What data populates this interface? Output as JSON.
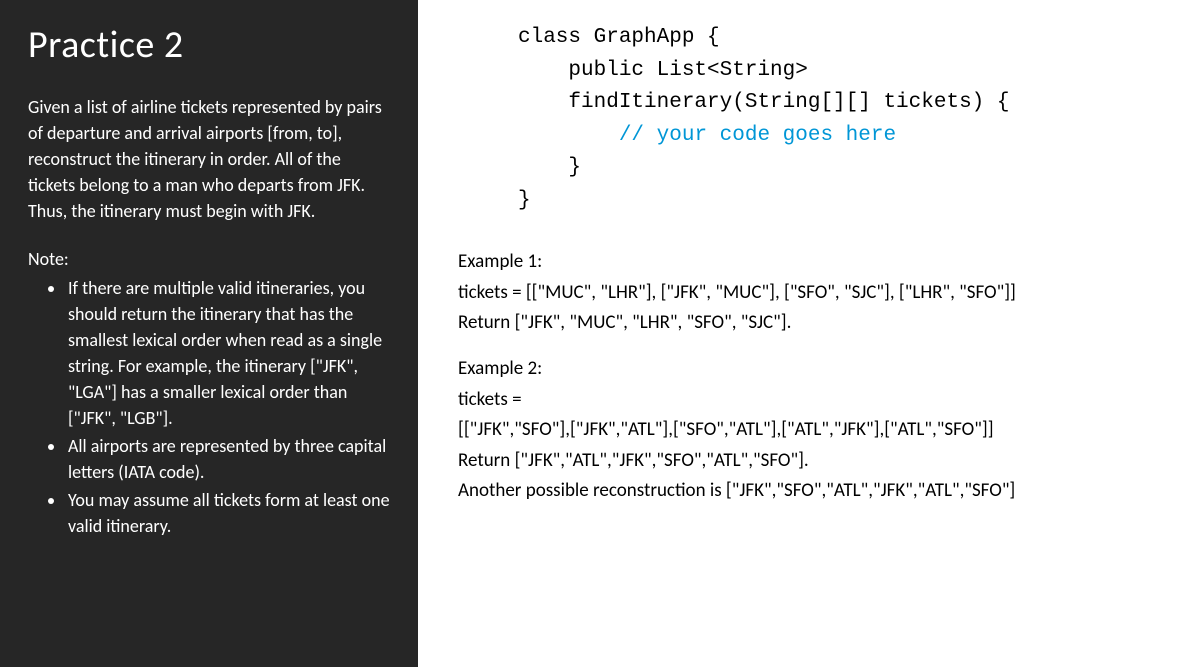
{
  "left": {
    "title": "Practice 2",
    "description": "Given a list of airline tickets represented by pairs of departure and arrival airports [from, to], reconstruct the itinerary in order. All of the tickets belong to a man who departs from JFK. Thus, the itinerary must begin with JFK.",
    "note_label": "Note:",
    "notes": [
      "If there are multiple valid itineraries, you should return the itinerary that has the smallest lexical order when read as a single string. For example, the itinerary [\"JFK\", \"LGA\"] has a smaller lexical order than [\"JFK\", \"LGB\"].",
      "All airports are represented by three capital letters (IATA code).",
      "You may assume all tickets form at least one valid itinerary."
    ]
  },
  "code": {
    "line1": "class GraphApp {",
    "line2": "    public List<String>",
    "line3": "    findItinerary(String[][] tickets) {",
    "line4_indent": "        ",
    "line4_comment": "// your code goes here",
    "line5": "    }",
    "line6": "}"
  },
  "examples": {
    "ex1": {
      "title": "Example 1:",
      "tickets": "tickets = [[\"MUC\", \"LHR\"], [\"JFK\", \"MUC\"], [\"SFO\", \"SJC\"], [\"LHR\", \"SFO\"]]",
      "ret": "Return [\"JFK\", \"MUC\", \"LHR\", \"SFO\", \"SJC\"]."
    },
    "ex2": {
      "title": "Example 2:",
      "tickets_label": "tickets =",
      "tickets_value": "[[\"JFK\",\"SFO\"],[\"JFK\",\"ATL\"],[\"SFO\",\"ATL\"],[\"ATL\",\"JFK\"],[\"ATL\",\"SFO\"]]",
      "ret": "Return [\"JFK\",\"ATL\",\"JFK\",\"SFO\",\"ATL\",\"SFO\"].",
      "alt": "Another possible reconstruction is [\"JFK\",\"SFO\",\"ATL\",\"JFK\",\"ATL\",\"SFO\"]"
    }
  },
  "style": {
    "left_bg": "#262626",
    "left_text": "#ffffff",
    "right_bg": "#ffffff",
    "right_text": "#000000",
    "comment_color": "#0096d6",
    "title_fontsize": 38,
    "body_fontsize": 18,
    "code_fontsize": 21,
    "example_fontsize": 19,
    "slide_width": 1200,
    "slide_height": 667,
    "left_width": 418
  }
}
